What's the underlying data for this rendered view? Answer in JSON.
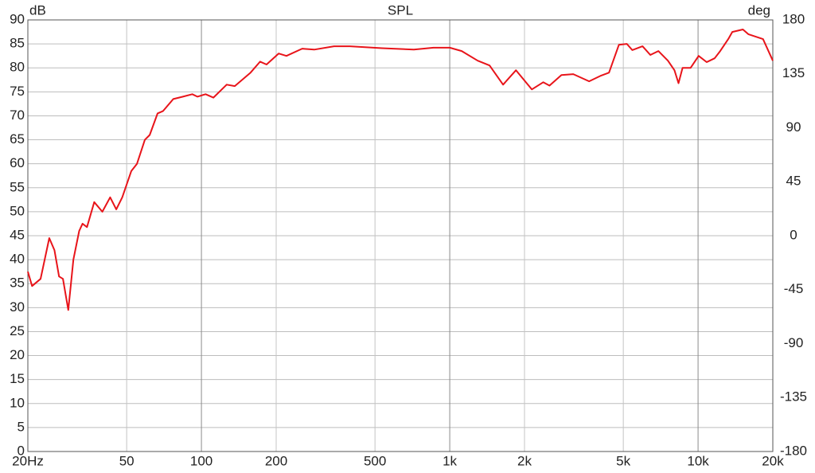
{
  "chart_data": {
    "type": "line",
    "title": "SPL",
    "ylabel": "dB",
    "y2label": "deg",
    "xscale": "log",
    "grid": true,
    "color": "#e8141a",
    "xlim": [
      20,
      20000
    ],
    "xticks": [
      {
        "value": 20,
        "label": "20Hz"
      },
      50,
      100,
      200,
      500,
      {
        "value": 1000,
        "label": "1k"
      },
      {
        "value": 2000,
        "label": "2k"
      },
      {
        "value": 5000,
        "label": "5k"
      },
      {
        "value": 10000,
        "label": "10k"
      },
      {
        "value": 20000,
        "label": "20k"
      }
    ],
    "ylim": [
      0,
      90
    ],
    "yticks": [
      0,
      5,
      10,
      15,
      20,
      25,
      30,
      35,
      40,
      45,
      50,
      55,
      60,
      65,
      70,
      75,
      80,
      85,
      90
    ],
    "y2lim": [
      -180,
      180
    ],
    "y2ticks": [
      -180,
      -135,
      -90,
      -45,
      0,
      45,
      90,
      135,
      180
    ],
    "x": [
      20,
      20.8,
      22.5,
      24.4,
      25.6,
      26.7,
      27.7,
      29.1,
      30.5,
      32.2,
      33.2,
      34.6,
      37.0,
      39.9,
      42.9,
      45.4,
      48.0,
      52.2,
      55,
      59.2,
      61.9,
      66.6,
      70.1,
      77.0,
      84.2,
      91.9,
      96.3,
      103.9,
      111.7,
      126.4,
      136.3,
      157.7,
      172.3,
      182.9,
      204.6,
      220,
      254.6,
      284.6,
      342,
      396,
      533,
      717,
      860,
      1000,
      1117,
      1296,
      1446,
      1640,
      1848,
      2141,
      2378,
      2522,
      2816,
      3143,
      3642,
      4070,
      4380,
      4800,
      5166,
      5433,
      5975,
      6424,
      6918,
      7561,
      8033,
      8341,
      8660,
      9333,
      10050,
      10830,
      11660,
      12280,
      13230,
      13740,
      15150,
      15970,
      18270,
      20000
    ],
    "values": [
      37.5,
      34.5,
      36,
      44.5,
      42,
      36.5,
      36,
      29.5,
      40,
      46,
      47.5,
      46.8,
      52,
      50,
      53,
      50.5,
      53,
      58.5,
      60,
      65,
      66,
      70.5,
      71,
      73.5,
      74,
      74.5,
      74,
      74.5,
      73.8,
      76.5,
      76.2,
      79,
      81.3,
      80.7,
      83,
      82.5,
      84,
      83.8,
      84.5,
      84.5,
      84.1,
      83.8,
      84.2,
      84.2,
      83.5,
      81.5,
      80.5,
      76.5,
      79.5,
      75.5,
      77,
      76.3,
      78.5,
      78.7,
      77.2,
      78.4,
      79,
      84.8,
      85,
      83.7,
      84.5,
      82.7,
      83.5,
      81.5,
      79.5,
      76.8,
      80,
      80,
      82.5,
      81.2,
      82,
      83.5,
      86,
      87.5,
      88,
      87,
      86,
      81.5
    ]
  }
}
